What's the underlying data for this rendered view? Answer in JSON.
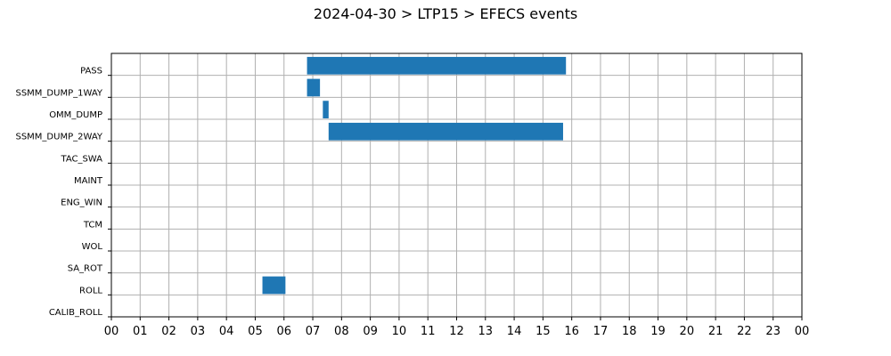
{
  "chart_data": {
    "type": "bar",
    "orientation": "horizontal-gantt",
    "title": "2024-04-30 > LTP15 > EFECS events",
    "xlabel": "",
    "ylabel": "",
    "x_unit": "hour of day",
    "xlim": [
      0,
      24
    ],
    "x_ticks": [
      "00",
      "01",
      "02",
      "03",
      "04",
      "05",
      "06",
      "07",
      "08",
      "09",
      "10",
      "11",
      "12",
      "13",
      "14",
      "15",
      "16",
      "17",
      "18",
      "19",
      "20",
      "21",
      "22",
      "23",
      "00"
    ],
    "grid": true,
    "categories": [
      "PASS",
      "SSMM_DUMP_1WAY",
      "OMM_DUMP",
      "SSMM_DUMP_2WAY",
      "TAC_SWA",
      "MAINT",
      "ENG_WIN",
      "TCM",
      "WOL",
      "SA_ROT",
      "ROLL",
      "CALIB_ROLL"
    ],
    "bar_color": "#1f77b4",
    "events": [
      {
        "category": "PASS",
        "start": 6.8,
        "end": 15.8
      },
      {
        "category": "SSMM_DUMP_1WAY",
        "start": 6.8,
        "end": 7.25
      },
      {
        "category": "OMM_DUMP",
        "start": 7.35,
        "end": 7.55
      },
      {
        "category": "SSMM_DUMP_2WAY",
        "start": 7.55,
        "end": 15.7
      },
      {
        "category": "ROLL",
        "start": 5.25,
        "end": 6.05
      }
    ]
  }
}
